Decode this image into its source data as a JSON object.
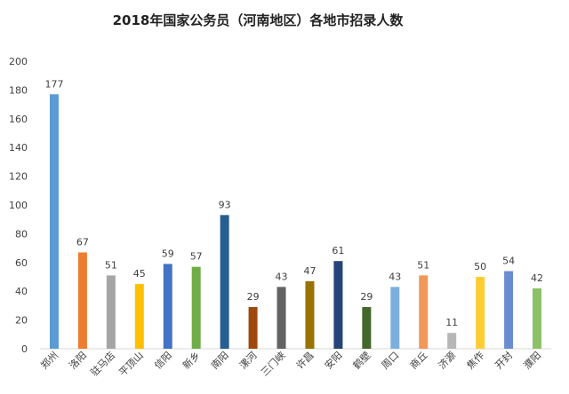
{
  "chart_data": {
    "type": "bar",
    "title": "2018年国家公务员（河南地区）各地市招录人数",
    "categories": [
      "郑州",
      "洛阳",
      "驻马店",
      "平顶山",
      "信阳",
      "新乡",
      "南阳",
      "漯河",
      "三门峡",
      "许昌",
      "安阳",
      "鹤壁",
      "周口",
      "商丘",
      "济源",
      "焦作",
      "开封",
      "濮阳"
    ],
    "values": [
      177,
      67,
      51,
      45,
      59,
      57,
      93,
      29,
      43,
      47,
      61,
      29,
      43,
      51,
      11,
      50,
      54,
      42
    ],
    "colors": [
      "#5B9BD5",
      "#ED7D31",
      "#A5A5A5",
      "#FFC000",
      "#4472C4",
      "#70AD47",
      "#255E91",
      "#9E480E",
      "#636363",
      "#997300",
      "#264478",
      "#43682B",
      "#7CAFDD",
      "#F1975A",
      "#B7B7B7",
      "#FFCD33",
      "#698ED0",
      "#8CC168"
    ],
    "ylim": [
      0,
      200
    ],
    "yticks": [
      0,
      20,
      40,
      60,
      80,
      100,
      120,
      140,
      160,
      180,
      200
    ],
    "grid": false,
    "legend": "none"
  }
}
